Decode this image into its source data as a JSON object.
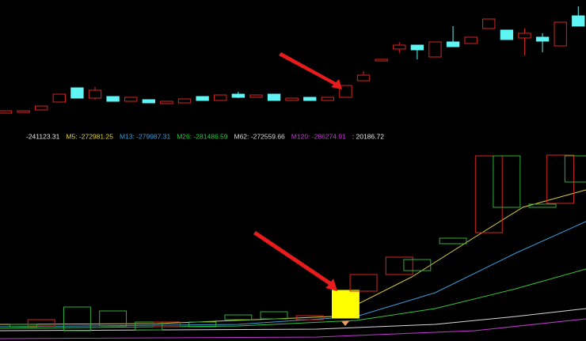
{
  "chart_data": [
    {
      "type": "candlestick",
      "up_color": "#d4261f",
      "down_color": "#5ff5f5",
      "xlim": [
        -0.31,
        32.43
      ],
      "ylim": [
        0,
        170
      ],
      "open": [
        27,
        28,
        31,
        41,
        59,
        46,
        48,
        42,
        44,
        39,
        40,
        48,
        43,
        51,
        47,
        51,
        43,
        47,
        43,
        47,
        68,
        93,
        108,
        113,
        98,
        117,
        115,
        134,
        132,
        122,
        123,
        112,
        150
      ],
      "close": [
        30,
        30,
        36,
        51,
        46,
        56,
        42,
        47,
        40,
        42,
        45,
        43,
        50,
        47,
        50,
        43,
        46,
        43,
        47,
        62,
        75,
        95,
        113,
        107,
        117,
        111,
        123,
        146,
        120,
        128,
        118,
        142,
        137
      ],
      "high": [
        30,
        30,
        36,
        51,
        59,
        60,
        48,
        47,
        44,
        42,
        45,
        48,
        50,
        54,
        50,
        51,
        46,
        47,
        47,
        62,
        80,
        95,
        117,
        113,
        117,
        137,
        123,
        146,
        132,
        134,
        128,
        142,
        162
      ],
      "low": [
        27,
        28,
        31,
        41,
        46,
        44,
        42,
        42,
        40,
        39,
        40,
        43,
        43,
        46,
        47,
        43,
        43,
        43,
        43,
        47,
        68,
        93,
        103,
        95,
        98,
        111,
        115,
        134,
        120,
        100,
        104,
        112,
        137
      ]
    },
    {
      "type": "box-line",
      "xlim": [
        -0.31,
        32.43
      ],
      "ylim": [
        0,
        261
      ],
      "legend": [
        {
          "text": "-241123.31",
          "color": "#e8e8e8"
        },
        {
          "text": "M5: -272981.25",
          "color": "#e0d23a"
        },
        {
          "text": "M13: -279987.31",
          "color": "#3c9bd6"
        },
        {
          "text": "M26: -281486.59",
          "color": "#35c443"
        },
        {
          "text": "M62: -272559.66",
          "color": "#d8d8d8"
        },
        {
          "text": "M120: -286274.91",
          "color": "#c23ccf"
        },
        {
          "text": ": 20186.72",
          "color": "#e8e8e8"
        }
      ],
      "box_x": [
        1,
        2,
        4,
        6,
        8,
        9,
        11,
        13,
        15,
        17,
        19,
        20,
        22,
        23,
        25,
        27,
        28,
        30,
        31,
        32
      ],
      "box_open": [
        21,
        19,
        43,
        38,
        24,
        18,
        24,
        33,
        37,
        27,
        29,
        63,
        84,
        103,
        130,
        137,
        234,
        173,
        174,
        234
      ],
      "box_close": [
        18,
        27,
        13,
        19,
        14,
        24,
        18,
        27,
        28,
        32,
        64,
        84,
        106,
        89,
        123,
        234,
        169,
        169,
        235,
        201
      ],
      "box_colors": [
        "#2fae37",
        "#d4261f",
        "#2fae37",
        "#2fae37",
        "#2fae37",
        "#d4261f",
        "#2fae37",
        "#2fae37",
        "#2fae37",
        "#d4261f",
        "#ffff00",
        "#d4261f",
        "#d4261f",
        "#2fae37",
        "#2fae37",
        "#d4261f",
        "#2fae37",
        "#2fae37",
        "#d4261f",
        "#2fae37"
      ],
      "series": [
        {
          "color": "#e0d23a",
          "x": [
            -0.31,
            8.5,
            18.3,
            22.7,
            26.2,
            28.9,
            32.43
          ],
          "values": [
            21,
            22,
            31,
            81,
            131,
            169,
            191
          ]
        },
        {
          "color": "#3c9bd6",
          "x": [
            -0.31,
            13,
            19.6,
            24,
            28.5,
            32.43
          ],
          "values": [
            18,
            21,
            31,
            61,
            111,
            151
          ]
        },
        {
          "color": "#35c443",
          "x": [
            -0.31,
            13,
            19.6,
            24,
            28.5,
            32.43
          ],
          "values": [
            16,
            19,
            26,
            41,
            66,
            91
          ]
        },
        {
          "color": "#d8d8d8",
          "x": [
            -0.31,
            17.4,
            24,
            28.5,
            32.43
          ],
          "values": [
            13,
            15,
            21,
            31,
            41
          ]
        },
        {
          "color": "#c23ccf",
          "x": [
            -0.31,
            17.4,
            26.2,
            32.43
          ],
          "values": [
            3,
            5,
            13,
            28
          ]
        }
      ]
    }
  ]
}
